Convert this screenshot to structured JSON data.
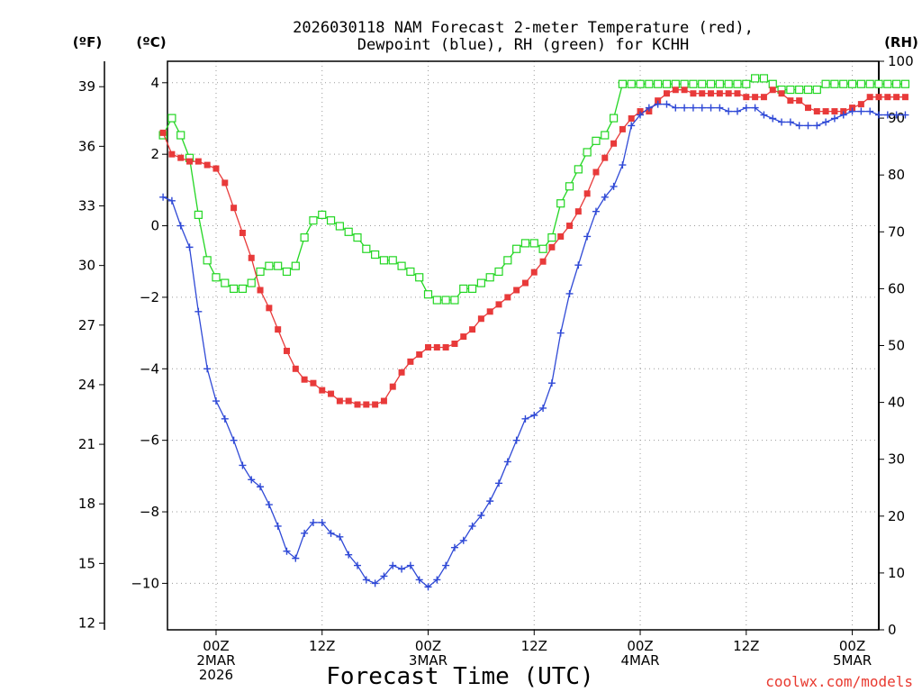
{
  "chart_data": {
    "type": "line",
    "title_line1": "2026030118 NAM Forecast 2-meter Temperature (red),",
    "title_line2": "Dewpoint (blue), RH (green) for KCHH",
    "unit_f": "(ºF)",
    "unit_c": "(ºC)",
    "unit_rh": "(RH)",
    "xlabel": "Forecast Time (UTC)",
    "credit": "coolwx.com/models",
    "forecast_hours": [
      0,
      72
    ],
    "ylim_c": [
      -11.3,
      4.6
    ],
    "ylim_rh": [
      0,
      100
    ],
    "left_c_ticks": [
      "4",
      "2",
      "0",
      "−2",
      "−4",
      "−6",
      "−8",
      "−10"
    ],
    "left_c_values": [
      4,
      2,
      0,
      -2,
      -4,
      -6,
      -8,
      -10
    ],
    "left_f_ticks": [
      "39",
      "36",
      "33",
      "30",
      "27",
      "24",
      "21",
      "18",
      "15",
      "12"
    ],
    "left_f_values": [
      39,
      36,
      33,
      30,
      27,
      24,
      21,
      18,
      15,
      12
    ],
    "right_rh_ticks": [
      "100",
      "90",
      "80",
      "70",
      "60",
      "50",
      "40",
      "30",
      "20",
      "10",
      "0"
    ],
    "right_rh_values": [
      100,
      90,
      80,
      70,
      60,
      50,
      40,
      30,
      20,
      10,
      0
    ],
    "x_ticks": [
      {
        "hour": 6,
        "line1": "00Z",
        "line2": "2MAR",
        "line3": "2026"
      },
      {
        "hour": 18,
        "line1": "12Z",
        "line2": "",
        "line3": ""
      },
      {
        "hour": 30,
        "line1": "00Z",
        "line2": "3MAR",
        "line3": ""
      },
      {
        "hour": 42,
        "line1": "12Z",
        "line2": "",
        "line3": ""
      },
      {
        "hour": 54,
        "line1": "00Z",
        "line2": "4MAR",
        "line3": ""
      },
      {
        "hour": 66,
        "line1": "12Z",
        "line2": "",
        "line3": ""
      },
      {
        "hour": 78,
        "line1": "00Z",
        "line2": "5MAR",
        "line3": ""
      }
    ],
    "series": [
      {
        "name": "Temperature",
        "axis": "celsius",
        "color": "#e83a3a",
        "marker": "filled-square",
        "values": [
          2.6,
          2.0,
          1.9,
          1.8,
          1.8,
          1.7,
          1.6,
          1.2,
          0.5,
          -0.2,
          -0.9,
          -1.8,
          -2.3,
          -2.9,
          -3.5,
          -4.0,
          -4.3,
          -4.4,
          -4.6,
          -4.7,
          -4.9,
          -4.9,
          -5.0,
          -5.0,
          -5.0,
          -4.9,
          -4.5,
          -4.1,
          -3.8,
          -3.6,
          -3.4,
          -3.4,
          -3.4,
          -3.3,
          -3.1,
          -2.9,
          -2.6,
          -2.4,
          -2.2,
          -2.0,
          -1.8,
          -1.6,
          -1.3,
          -1.0,
          -0.6,
          -0.3,
          0.0,
          0.4,
          0.9,
          1.5,
          1.9,
          2.3,
          2.7,
          3.0,
          3.2,
          3.2,
          3.5,
          3.7,
          3.8,
          3.8,
          3.7,
          3.7,
          3.7,
          3.7,
          3.7,
          3.7,
          3.6,
          3.6,
          3.6,
          3.8,
          3.7,
          3.5,
          3.5,
          3.3,
          3.2,
          3.2,
          3.2,
          3.2,
          3.3,
          3.4,
          3.6,
          3.6,
          3.6,
          3.6,
          3.6
        ]
      },
      {
        "name": "Dewpoint",
        "axis": "celsius",
        "color": "#2f49d6",
        "marker": "plus",
        "values": [
          0.8,
          0.7,
          0.0,
          -0.6,
          -2.4,
          -4.0,
          -4.9,
          -5.4,
          -6.0,
          -6.7,
          -7.1,
          -7.3,
          -7.8,
          -8.4,
          -9.1,
          -9.3,
          -8.6,
          -8.3,
          -8.3,
          -8.6,
          -8.7,
          -9.2,
          -9.5,
          -9.9,
          -10.0,
          -9.8,
          -9.5,
          -9.6,
          -9.5,
          -9.9,
          -10.1,
          -9.9,
          -9.5,
          -9.0,
          -8.8,
          -8.4,
          -8.1,
          -7.7,
          -7.2,
          -6.6,
          -6.0,
          -5.4,
          -5.3,
          -5.1,
          -4.4,
          -3.0,
          -1.9,
          -1.1,
          -0.3,
          0.4,
          0.8,
          1.1,
          1.7,
          2.8,
          3.1,
          3.3,
          3.4,
          3.4,
          3.3,
          3.3,
          3.3,
          3.3,
          3.3,
          3.3,
          3.2,
          3.2,
          3.3,
          3.3,
          3.1,
          3.0,
          2.9,
          2.9,
          2.8,
          2.8,
          2.8,
          2.9,
          3.0,
          3.1,
          3.2,
          3.2,
          3.2,
          3.1,
          3.1,
          3.1,
          3.1
        ]
      },
      {
        "name": "RH",
        "axis": "rh",
        "color": "#22d622",
        "marker": "open-square",
        "values": [
          87,
          90,
          87,
          83,
          73,
          65,
          62,
          61,
          60,
          60,
          61,
          63,
          64,
          64,
          63,
          64,
          69,
          72,
          73,
          72,
          71,
          70,
          69,
          67,
          66,
          65,
          65,
          64,
          63,
          62,
          59,
          58,
          58,
          58,
          60,
          60,
          61,
          62,
          63,
          65,
          67,
          68,
          68,
          67,
          69,
          75,
          78,
          81,
          84,
          86,
          87,
          90,
          96,
          96,
          96,
          96,
          96,
          96,
          96,
          96,
          96,
          96,
          96,
          96,
          96,
          96,
          96,
          97,
          97,
          96,
          95,
          95,
          95,
          95,
          95,
          96,
          96,
          96,
          96,
          96,
          96,
          96,
          96,
          96,
          96
        ]
      }
    ]
  }
}
